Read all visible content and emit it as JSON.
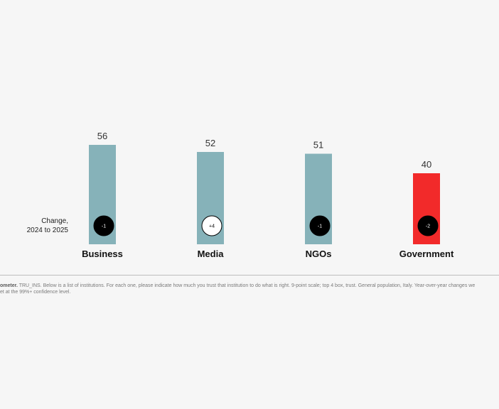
{
  "chart_data": {
    "type": "bar",
    "categories": [
      "Business",
      "Media",
      "NGOs",
      "Government"
    ],
    "values": [
      56,
      52,
      51,
      40
    ],
    "changes": [
      "-1",
      "+4",
      "-1",
      "-2"
    ],
    "change_label_line1": "Change,",
    "change_label_line2": "2024 to 2025",
    "ylim": [
      0,
      100
    ],
    "grid": false,
    "colors": {
      "default_bar": "#86b2b9",
      "highlight_bar": "#f22a2a",
      "decrease_circle": "#000000",
      "increase_circle": "#ffffff"
    },
    "highlight_category": "Government"
  },
  "footnote": {
    "line1_bold": "ometer.",
    "line1_rest": " TRU_INS. Below is a list of institutions. For each one, please indicate how much you trust that institution to do what is right. 9-point scale; top 4 box, trust. General population, Italy. Year-over-year changes we",
    "line2": "et at the 99%+ confidence level."
  }
}
